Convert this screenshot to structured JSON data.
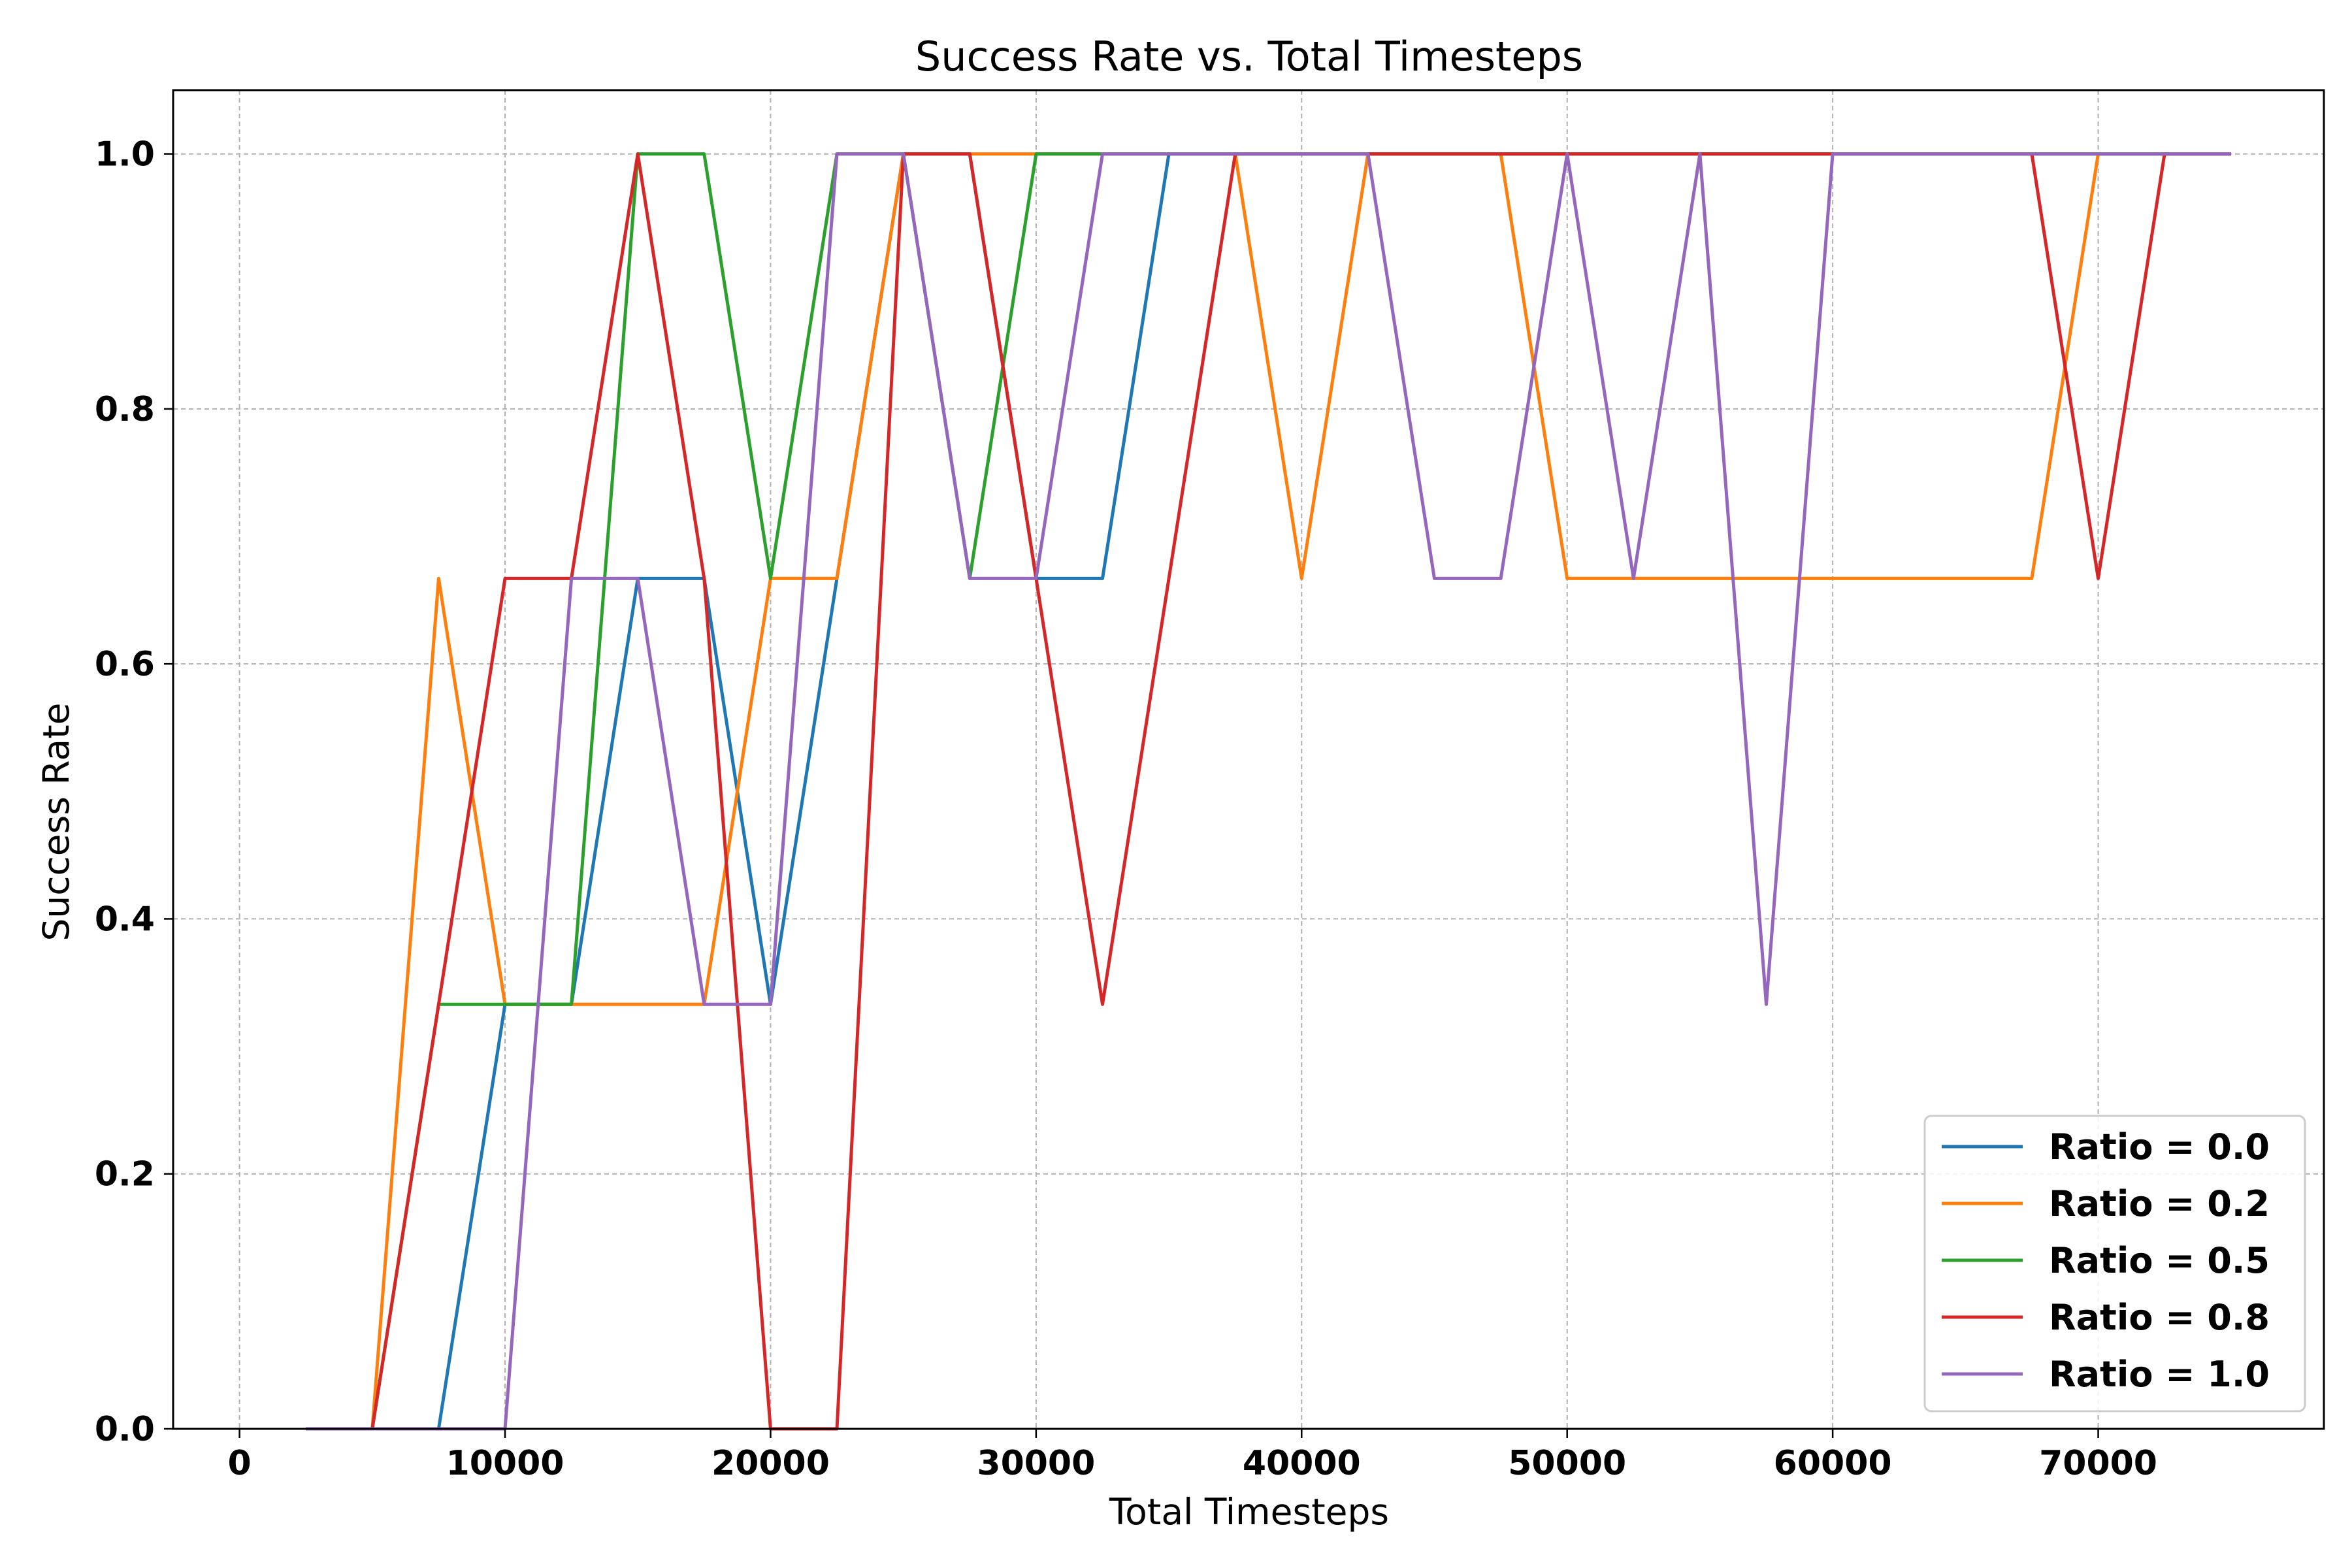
{
  "chart_data": {
    "type": "line",
    "title": "Success Rate vs. Total Timesteps",
    "xlabel": "Total Timesteps",
    "ylabel": "Success Rate",
    "xlim": [
      -2500,
      78500
    ],
    "ylim": [
      0,
      1.05
    ],
    "xticks": [
      0,
      10000,
      20000,
      30000,
      40000,
      50000,
      60000,
      70000
    ],
    "xtick_labels": [
      "0",
      "10000",
      "20000",
      "30000",
      "40000",
      "50000",
      "60000",
      "70000"
    ],
    "yticks": [
      0,
      0.2,
      0.4,
      0.6,
      0.8,
      1.0
    ],
    "ytick_labels": [
      "0.0",
      "0.2",
      "0.4",
      "0.6",
      "0.8",
      "1.0"
    ],
    "grid": true,
    "legend_position": "lower-right",
    "x": [
      2500,
      5000,
      7500,
      10000,
      12500,
      15000,
      17500,
      20000,
      22500,
      25000,
      27500,
      30000,
      32500,
      35000,
      37500,
      40000,
      42500,
      45000,
      47500,
      50000,
      52500,
      55000,
      57500,
      60000,
      62500,
      65000,
      67500,
      70000,
      72500,
      75000
    ],
    "series": [
      {
        "name": "Ratio = 0.0",
        "color": "#1f77b4",
        "values": [
          0,
          0,
          0,
          0.333,
          0.333,
          0.667,
          0.667,
          0.333,
          0.667,
          1,
          1,
          0.667,
          0.667,
          1,
          1,
          1,
          1,
          1,
          1,
          1,
          1,
          1,
          1,
          1,
          1,
          1,
          1,
          1,
          1,
          1
        ]
      },
      {
        "name": "Ratio = 0.2",
        "color": "#ff7f0e",
        "values": [
          0,
          0,
          0.667,
          0.333,
          0.333,
          0.333,
          0.333,
          0.667,
          0.667,
          1,
          1,
          1,
          1,
          1,
          1,
          0.667,
          1,
          1,
          1,
          0.667,
          0.667,
          0.667,
          0.667,
          0.667,
          0.667,
          0.667,
          0.667,
          1,
          1,
          1
        ]
      },
      {
        "name": "Ratio = 0.5",
        "color": "#2ca02c",
        "values": [
          0,
          0,
          0.333,
          0.333,
          0.333,
          1,
          1,
          0.667,
          1,
          1,
          0.667,
          1,
          1,
          1,
          1,
          1,
          1,
          1,
          1,
          1,
          1,
          1,
          1,
          1,
          1,
          1,
          1,
          1,
          1,
          1
        ]
      },
      {
        "name": "Ratio = 0.8",
        "color": "#d62728",
        "values": [
          0,
          0,
          0.333,
          0.667,
          0.667,
          1,
          0.667,
          0,
          0,
          1,
          1,
          0.667,
          0.333,
          0.667,
          1,
          1,
          1,
          1,
          1,
          1,
          1,
          1,
          1,
          1,
          1,
          1,
          1,
          0.667,
          1,
          1
        ]
      },
      {
        "name": "Ratio = 1.0",
        "color": "#9467bd",
        "values": [
          0,
          0,
          0,
          0,
          0.667,
          0.667,
          0.333,
          0.333,
          1,
          1,
          0.667,
          0.667,
          1,
          1,
          1,
          1,
          1,
          0.667,
          0.667,
          1,
          0.667,
          1,
          0.333,
          1,
          1,
          1,
          1,
          1,
          1,
          1
        ]
      }
    ]
  }
}
